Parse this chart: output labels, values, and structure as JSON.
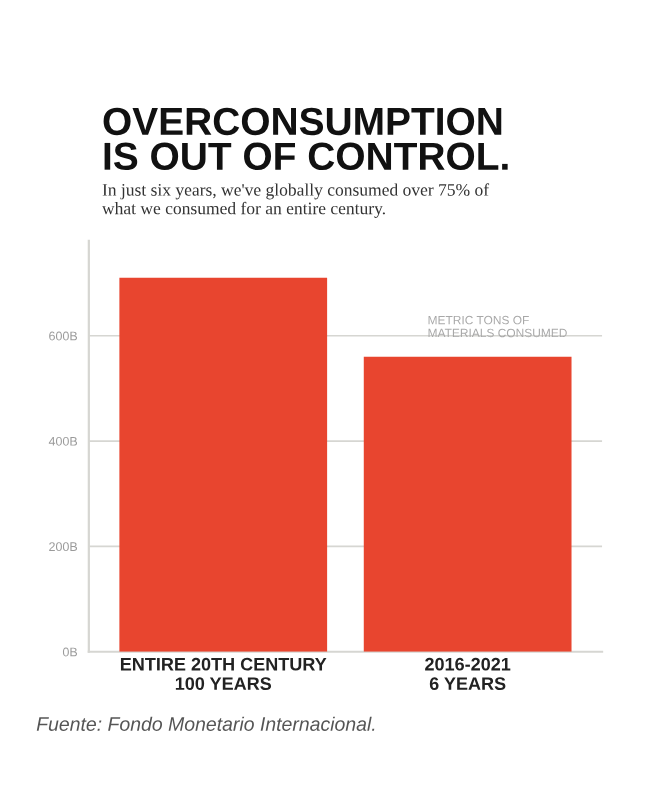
{
  "chart_data": {
    "type": "bar",
    "title": "OVERCONSUMPTION\nIS OUT OF CONTROL.",
    "subtitle": "In just six years, we've globally consumed over 75% of\nwhat we consumed for an entire century.",
    "categories": [
      "ENTIRE 20TH CENTURY\n100 YEARS",
      "2016-2021\n6 YEARS"
    ],
    "values": [
      710,
      560
    ],
    "color": "#e8452f",
    "ylim": [
      0,
      780
    ],
    "yticks": [
      {
        "value": 0,
        "label": "0B"
      },
      {
        "value": 200,
        "label": "200B"
      },
      {
        "value": 400,
        "label": "400B"
      },
      {
        "value": 600,
        "label": "600B"
      }
    ],
    "grid": "y",
    "annotations": [
      "METRIC TONS OF\nMATERIALS CONSUMED",
      "Fuente: Fondo Monetario Internacional."
    ]
  }
}
